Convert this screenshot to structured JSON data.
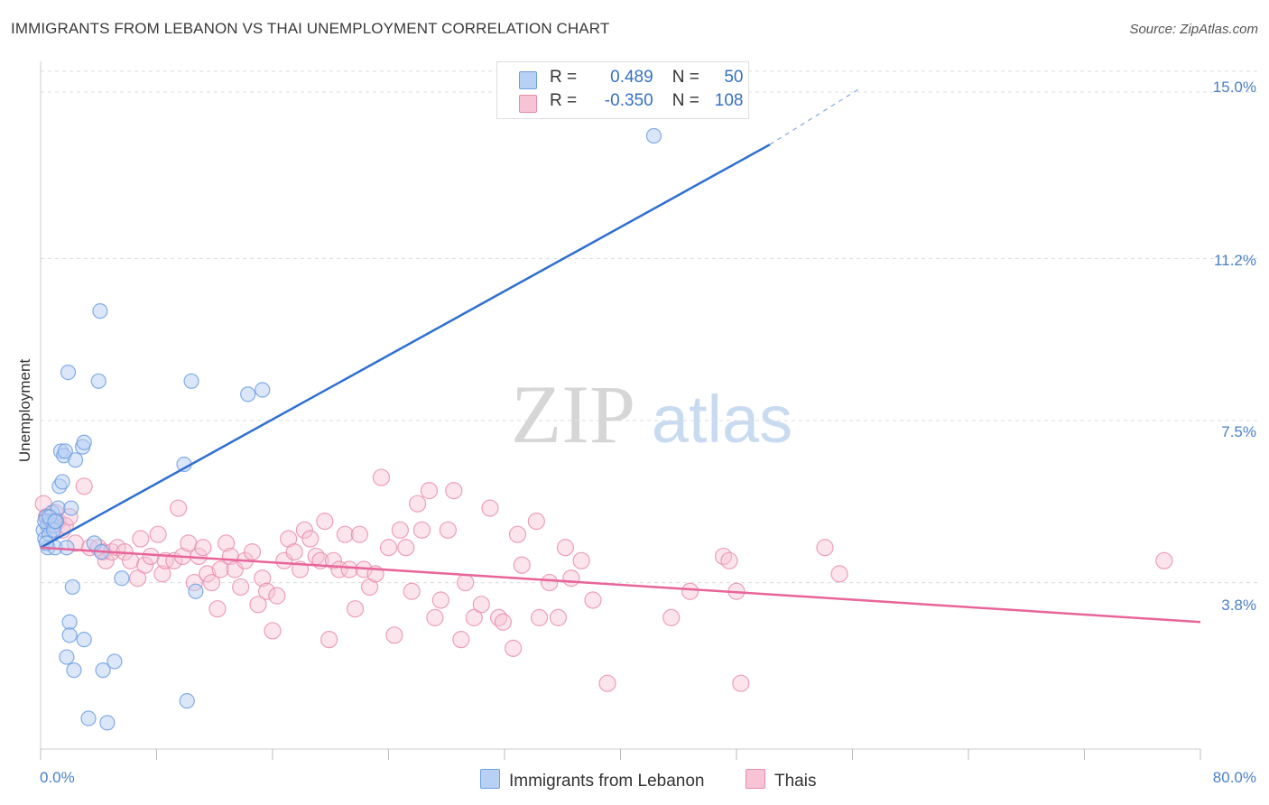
{
  "title": "IMMIGRANTS FROM LEBANON VS THAI UNEMPLOYMENT CORRELATION CHART",
  "source": "Source: ZipAtlas.com",
  "watermark": {
    "zip": "ZIP",
    "atlas": "atlas"
  },
  "colors": {
    "blue": "#6f9fe0",
    "blue_fill": "#b8d0f3",
    "blue_line": "#2e6fd0",
    "pink": "#e98aab",
    "pink_fill": "#f6c4d5",
    "pink_line": "#e8659a",
    "grid": "#dcdcdc",
    "tick_text": "#4a7fc9"
  },
  "legend": {
    "rows": [
      {
        "r_label": "R =",
        "r_value": "0.489",
        "n_label": "N =",
        "n_value": "50"
      },
      {
        "r_label": "R =",
        "r_value": "-0.350",
        "n_label": "N =",
        "n_value": "108"
      }
    ]
  },
  "chart_data": {
    "type": "scatter",
    "title": "IMMIGRANTS FROM LEBANON VS THAI UNEMPLOYMENT CORRELATION CHART",
    "xlabel": "",
    "ylabel": "Unemployment",
    "xlim": [
      0,
      80
    ],
    "ylim": [
      0,
      15.7
    ],
    "x_tick_labels": [
      "0.0%",
      "80.0%"
    ],
    "y_ticks": [
      3.8,
      7.5,
      11.2,
      15.0
    ],
    "y_tick_labels": [
      "3.8%",
      "7.5%",
      "11.2%",
      "15.0%"
    ],
    "grid": true,
    "legend_placement": "bottom-center",
    "series": [
      {
        "name": "Immigrants from Lebanon",
        "color": "#6f9fe0",
        "r": 0.489,
        "n": 50,
        "trend": {
          "x": [
            0,
            50.3
          ],
          "y": [
            4.6,
            13.8
          ],
          "dashed_to": [
            56.6,
            15.1
          ]
        },
        "points": [
          [
            0.2,
            5.0
          ],
          [
            0.3,
            4.8
          ],
          [
            0.4,
            5.3
          ],
          [
            0.5,
            5.1
          ],
          [
            0.5,
            4.6
          ],
          [
            0.6,
            4.9
          ],
          [
            0.7,
            5.2
          ],
          [
            0.8,
            5.4
          ],
          [
            0.9,
            5.1
          ],
          [
            1.0,
            4.6
          ],
          [
            1.1,
            5.2
          ],
          [
            1.2,
            5.5
          ],
          [
            1.3,
            6.0
          ],
          [
            1.4,
            6.8
          ],
          [
            1.5,
            6.1
          ],
          [
            1.6,
            6.7
          ],
          [
            1.7,
            6.8
          ],
          [
            1.8,
            4.6
          ],
          [
            1.8,
            2.1
          ],
          [
            1.9,
            8.6
          ],
          [
            2.0,
            2.9
          ],
          [
            2.0,
            2.6
          ],
          [
            2.1,
            5.5
          ],
          [
            2.2,
            3.7
          ],
          [
            2.3,
            1.8
          ],
          [
            2.4,
            6.6
          ],
          [
            2.9,
            6.9
          ],
          [
            3.0,
            7.0
          ],
          [
            3.0,
            2.5
          ],
          [
            3.3,
            0.7
          ],
          [
            3.7,
            4.7
          ],
          [
            4.1,
            10.0
          ],
          [
            4.0,
            8.4
          ],
          [
            4.2,
            4.5
          ],
          [
            4.3,
            1.8
          ],
          [
            4.6,
            0.6
          ],
          [
            5.1,
            2.0
          ],
          [
            5.6,
            3.9
          ],
          [
            9.9,
            6.5
          ],
          [
            10.1,
            1.1
          ],
          [
            10.4,
            8.4
          ],
          [
            10.7,
            3.6
          ],
          [
            14.3,
            8.1
          ],
          [
            15.3,
            8.2
          ],
          [
            42.3,
            14.0
          ],
          [
            0.3,
            5.2
          ],
          [
            0.4,
            4.7
          ],
          [
            0.6,
            5.3
          ],
          [
            0.9,
            5.0
          ],
          [
            1.0,
            5.2
          ]
        ]
      },
      {
        "name": "Thais",
        "color": "#e98aab",
        "r": -0.35,
        "n": 108,
        "trend": {
          "x": [
            0,
            80
          ],
          "y": [
            4.6,
            2.9
          ]
        },
        "points": [
          [
            0.2,
            5.6
          ],
          [
            0.4,
            5.3
          ],
          [
            0.6,
            5.2
          ],
          [
            0.8,
            5.0
          ],
          [
            1.0,
            5.4
          ],
          [
            1.2,
            5.2
          ],
          [
            1.5,
            5.0
          ],
          [
            1.7,
            5.1
          ],
          [
            2.0,
            5.3
          ],
          [
            2.4,
            4.7
          ],
          [
            3.0,
            6.0
          ],
          [
            3.4,
            4.6
          ],
          [
            4.0,
            4.6
          ],
          [
            4.3,
            4.5
          ],
          [
            4.5,
            4.3
          ],
          [
            4.9,
            4.5
          ],
          [
            5.3,
            4.6
          ],
          [
            5.8,
            4.5
          ],
          [
            6.2,
            4.3
          ],
          [
            6.7,
            3.9
          ],
          [
            6.9,
            4.8
          ],
          [
            7.2,
            4.2
          ],
          [
            7.6,
            4.4
          ],
          [
            8.1,
            4.9
          ],
          [
            8.4,
            4.0
          ],
          [
            8.6,
            4.3
          ],
          [
            9.2,
            4.3
          ],
          [
            9.5,
            5.5
          ],
          [
            9.8,
            4.4
          ],
          [
            10.2,
            4.7
          ],
          [
            10.6,
            3.8
          ],
          [
            10.9,
            4.4
          ],
          [
            11.2,
            4.6
          ],
          [
            11.5,
            4.0
          ],
          [
            11.8,
            3.8
          ],
          [
            12.2,
            3.2
          ],
          [
            12.4,
            4.1
          ],
          [
            12.8,
            4.7
          ],
          [
            13.1,
            4.4
          ],
          [
            13.4,
            4.1
          ],
          [
            13.8,
            3.7
          ],
          [
            14.1,
            4.3
          ],
          [
            14.6,
            4.5
          ],
          [
            15.0,
            3.3
          ],
          [
            15.3,
            3.9
          ],
          [
            15.6,
            3.6
          ],
          [
            16.0,
            2.7
          ],
          [
            16.3,
            3.5
          ],
          [
            16.8,
            4.3
          ],
          [
            17.1,
            4.8
          ],
          [
            17.5,
            4.5
          ],
          [
            17.9,
            4.1
          ],
          [
            18.2,
            5.0
          ],
          [
            18.6,
            4.8
          ],
          [
            19.0,
            4.4
          ],
          [
            19.3,
            4.3
          ],
          [
            19.6,
            5.2
          ],
          [
            19.9,
            2.5
          ],
          [
            20.2,
            4.3
          ],
          [
            20.6,
            4.1
          ],
          [
            21.0,
            4.9
          ],
          [
            21.3,
            4.1
          ],
          [
            21.7,
            3.2
          ],
          [
            22.0,
            4.9
          ],
          [
            22.3,
            4.1
          ],
          [
            22.7,
            3.7
          ],
          [
            23.1,
            4.0
          ],
          [
            23.5,
            6.2
          ],
          [
            24.0,
            4.6
          ],
          [
            24.4,
            2.6
          ],
          [
            24.8,
            5.0
          ],
          [
            25.2,
            4.6
          ],
          [
            25.6,
            3.6
          ],
          [
            26.0,
            5.6
          ],
          [
            26.3,
            5.0
          ],
          [
            26.8,
            5.9
          ],
          [
            27.2,
            3.0
          ],
          [
            27.6,
            3.4
          ],
          [
            28.1,
            5.0
          ],
          [
            28.5,
            5.9
          ],
          [
            29.0,
            2.5
          ],
          [
            29.3,
            3.8
          ],
          [
            29.9,
            3.0
          ],
          [
            30.4,
            3.3
          ],
          [
            31.0,
            5.5
          ],
          [
            31.6,
            3.0
          ],
          [
            31.9,
            2.9
          ],
          [
            32.6,
            2.3
          ],
          [
            32.9,
            4.9
          ],
          [
            33.2,
            4.2
          ],
          [
            34.2,
            5.2
          ],
          [
            34.4,
            3.0
          ],
          [
            35.1,
            3.8
          ],
          [
            35.7,
            3.0
          ],
          [
            36.2,
            4.6
          ],
          [
            36.6,
            3.9
          ],
          [
            37.3,
            4.3
          ],
          [
            38.1,
            3.4
          ],
          [
            39.1,
            1.5
          ],
          [
            43.5,
            3.0
          ],
          [
            44.8,
            3.6
          ],
          [
            47.1,
            4.4
          ],
          [
            47.5,
            4.3
          ],
          [
            48.0,
            3.6
          ],
          [
            48.3,
            1.5
          ],
          [
            54.1,
            4.6
          ],
          [
            55.1,
            4.0
          ],
          [
            77.5,
            4.3
          ]
        ]
      }
    ]
  },
  "bottom_legend": [
    {
      "label": "Immigrants from Lebanon"
    },
    {
      "label": "Thais"
    }
  ]
}
